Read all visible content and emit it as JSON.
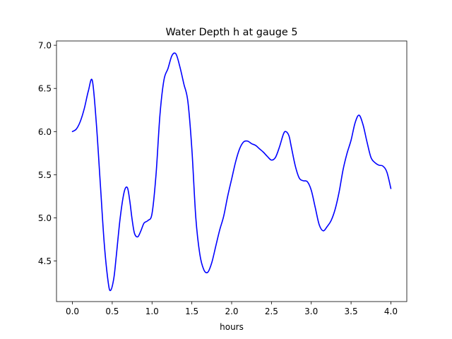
{
  "chart_data": {
    "type": "line",
    "title": "Water Depth h at gauge 5",
    "xlabel": "hours",
    "ylabel": "",
    "xlim": [
      -0.2,
      4.2
    ],
    "ylim": [
      4.03,
      7.05
    ],
    "x_ticks": [
      0.0,
      0.5,
      1.0,
      1.5,
      2.0,
      2.5,
      3.0,
      3.5,
      4.0
    ],
    "x_tick_labels": [
      "0.0",
      "0.5",
      "1.0",
      "1.5",
      "2.0",
      "2.5",
      "3.0",
      "3.5",
      "4.0"
    ],
    "y_ticks": [
      4.5,
      5.0,
      5.5,
      6.0,
      6.5,
      7.0
    ],
    "y_tick_labels": [
      "4.5",
      "5.0",
      "5.5",
      "6.0",
      "6.5",
      "7.0"
    ],
    "grid": false,
    "legend": "none",
    "series": [
      {
        "color": "#0000ff",
        "x": [
          0.0,
          0.05,
          0.1,
          0.15,
          0.2,
          0.25,
          0.3,
          0.35,
          0.4,
          0.45,
          0.48,
          0.52,
          0.55,
          0.6,
          0.65,
          0.69,
          0.72,
          0.75,
          0.78,
          0.82,
          0.86,
          0.9,
          0.95,
          1.0,
          1.05,
          1.1,
          1.15,
          1.2,
          1.25,
          1.3,
          1.35,
          1.4,
          1.45,
          1.5,
          1.55,
          1.6,
          1.65,
          1.7,
          1.75,
          1.8,
          1.85,
          1.9,
          1.95,
          2.0,
          2.05,
          2.1,
          2.15,
          2.2,
          2.25,
          2.3,
          2.35,
          2.4,
          2.45,
          2.5,
          2.55,
          2.6,
          2.65,
          2.68,
          2.72,
          2.75,
          2.8,
          2.85,
          2.9,
          2.95,
          3.0,
          3.05,
          3.1,
          3.15,
          3.2,
          3.25,
          3.3,
          3.35,
          3.4,
          3.45,
          3.5,
          3.55,
          3.6,
          3.65,
          3.7,
          3.75,
          3.8,
          3.85,
          3.9,
          3.95,
          4.0
        ],
        "y": [
          6.0,
          6.03,
          6.12,
          6.27,
          6.47,
          6.59,
          6.1,
          5.4,
          4.7,
          4.25,
          4.16,
          4.3,
          4.55,
          5.0,
          5.3,
          5.35,
          5.2,
          4.98,
          4.82,
          4.78,
          4.85,
          4.94,
          4.97,
          5.05,
          5.5,
          6.2,
          6.6,
          6.73,
          6.88,
          6.9,
          6.75,
          6.55,
          6.35,
          5.8,
          5.0,
          4.58,
          4.4,
          4.37,
          4.48,
          4.67,
          4.86,
          5.02,
          5.25,
          5.45,
          5.65,
          5.8,
          5.88,
          5.89,
          5.86,
          5.84,
          5.8,
          5.76,
          5.71,
          5.67,
          5.7,
          5.82,
          5.97,
          6.0,
          5.95,
          5.82,
          5.6,
          5.46,
          5.43,
          5.42,
          5.32,
          5.12,
          4.92,
          4.85,
          4.9,
          4.97,
          5.1,
          5.3,
          5.56,
          5.75,
          5.9,
          6.1,
          6.19,
          6.08,
          5.88,
          5.7,
          5.64,
          5.61,
          5.6,
          5.53,
          5.34
        ]
      }
    ]
  }
}
